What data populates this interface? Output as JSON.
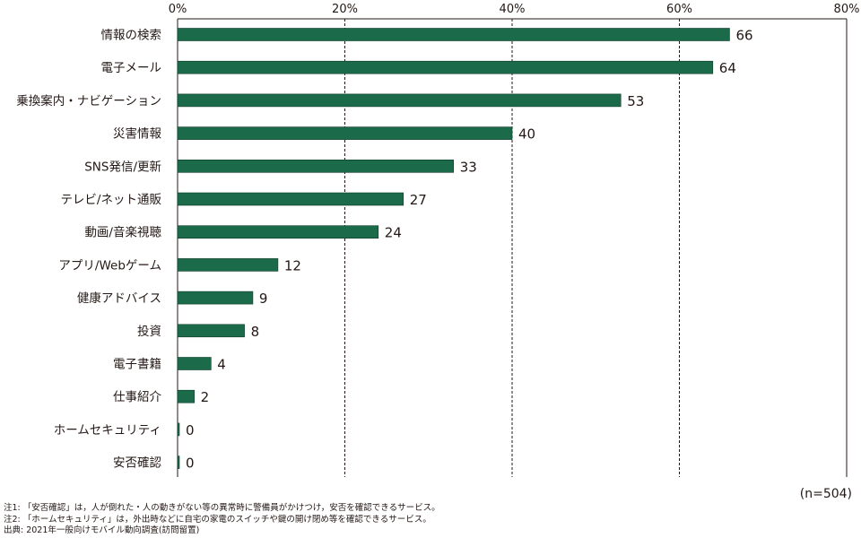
{
  "chart_data": {
    "type": "bar",
    "orientation": "horizontal",
    "categories": [
      "情報の検索",
      "電子メール",
      "乗換案内・ナビゲーション",
      "災害情報",
      "SNS発信/更新",
      "テレビ/ネット通販",
      "動画/音楽視聴",
      "アプリ/Webゲーム",
      "健康アドバイス",
      "投資",
      "電子書籍",
      "仕事紹介",
      "ホームセキュリティ",
      "安否確認"
    ],
    "values": [
      66,
      64,
      53,
      40,
      33,
      27,
      24,
      12,
      9,
      8,
      4,
      2,
      0,
      0
    ],
    "xlim": [
      0,
      80
    ],
    "x_ticks": [
      0,
      20,
      40,
      60,
      80
    ],
    "tick_suffix": "%",
    "grid": "vertical dashed",
    "bar_color": "#1b6b4a"
  },
  "sample_size": "(n=504)",
  "notes": [
    "注1: 「安否確認」は，人が倒れた・人の動きがない等の異常時に警備員がかけつけ，安否を確認できるサービス。",
    "注2: 「ホームセキュリティ」は，外出時などに自宅の家電のスイッチや鍵の開け閉め等を確認できるサービス。",
    "出典: 2021年一般向けモバイル動向調査(訪問留置)"
  ]
}
